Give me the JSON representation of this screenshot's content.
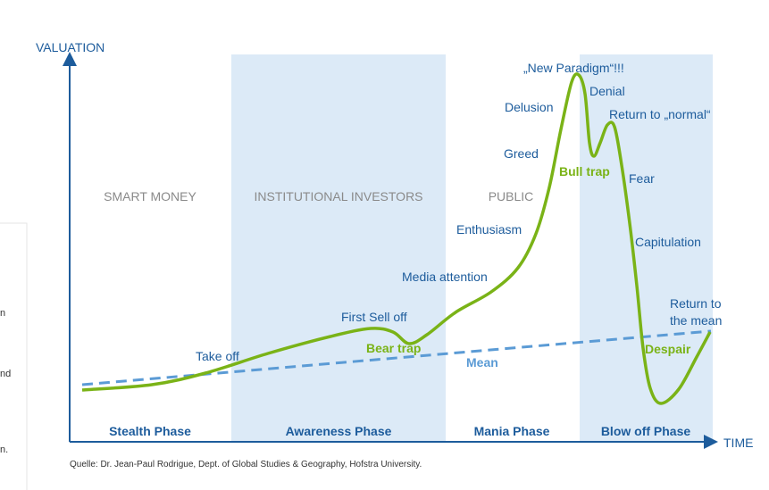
{
  "axes": {
    "y_label": "VALUATION",
    "x_label": "TIME"
  },
  "zones": [
    "SMART MONEY",
    "INSTITUTIONAL INVESTORS",
    "PUBLIC"
  ],
  "phases": [
    "Stealth Phase",
    "Awareness Phase",
    "Mania Phase",
    "Blow off Phase"
  ],
  "annotations": {
    "take_off": "Take off",
    "first_sell_off": "First Sell off",
    "media_attention": "Media attention",
    "enthusiasm": "Enthusiasm",
    "greed": "Greed",
    "delusion": "Delusion",
    "new_paradigm": "„New Paradigm“!!!",
    "denial": "Denial",
    "return_to_normal": "Return to „normal“",
    "fear": "Fear",
    "capitulation": "Capitulation",
    "return_to_mean": [
      "Return to",
      "the mean"
    ],
    "bear_trap": "Bear trap",
    "bull_trap": "Bull trap",
    "despair": "Despair",
    "mean": "Mean"
  },
  "source": "Quelle: Dr. Jean-Paul Rodrigue, Dept. of Global Studies & Geography, Hofstra University.",
  "sidebar": [
    "n",
    "nd",
    "n."
  ]
}
